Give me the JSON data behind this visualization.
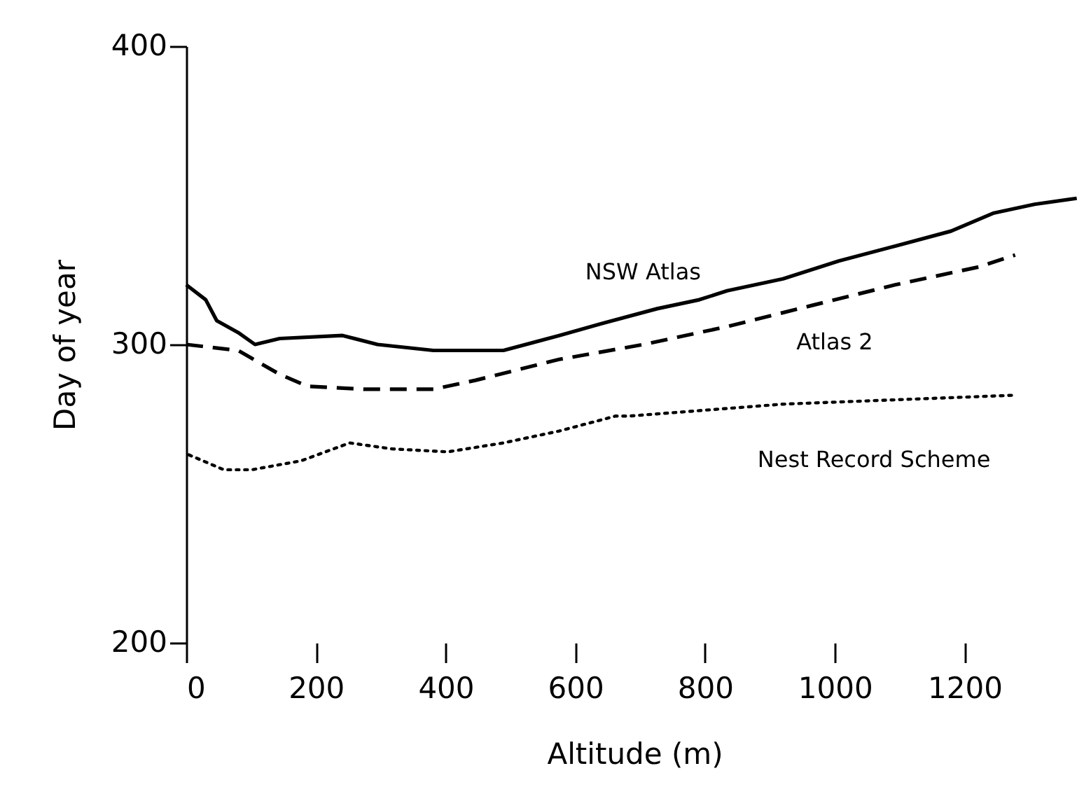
{
  "chart_data": {
    "type": "line",
    "xlabel": "Altitude (m)",
    "ylabel": "Day of year",
    "xlim": [
      0,
      1382
    ],
    "ylim": [
      200,
      400
    ],
    "xticks": [
      0,
      200,
      400,
      600,
      800,
      1000,
      1200
    ],
    "yticks": [
      200,
      300,
      400
    ],
    "grid": false,
    "marker": "none",
    "series": [
      {
        "name": "NSW Atlas",
        "color": "#000000",
        "line_style": "solid",
        "x": [
          0,
          30,
          47,
          80,
          106,
          144,
          241,
          295,
          381,
          489,
          575,
          640,
          726,
          791,
          834,
          920,
          1006,
          1093,
          1179,
          1244,
          1308,
          1373
        ],
        "values": [
          320,
          315,
          308,
          304,
          300,
          302,
          303,
          300,
          298,
          298,
          303,
          307,
          312,
          315,
          318,
          322,
          328,
          333,
          338,
          344,
          347,
          349
        ]
      },
      {
        "name": "Atlas 2",
        "color": "#000000",
        "line_style": "dashed",
        "x": [
          0,
          80,
          144,
          187,
          274,
          381,
          446,
          575,
          705,
          834,
          963,
          1093,
          1222,
          1278
        ],
        "values": [
          300,
          298,
          290,
          286,
          285,
          285,
          288,
          295,
          300,
          306,
          313,
          320,
          326,
          330
        ]
      },
      {
        "name": "Nest Record Scheme",
        "color": "#000000",
        "line_style": "dotted",
        "x": [
          4,
          58,
          101,
          177,
          252,
          317,
          403,
          489,
          575,
          662,
          683,
          920,
          1278
        ],
        "values": [
          263,
          258,
          258,
          261,
          267,
          265,
          264,
          267,
          271,
          276,
          276,
          280,
          283
        ]
      }
    ]
  }
}
